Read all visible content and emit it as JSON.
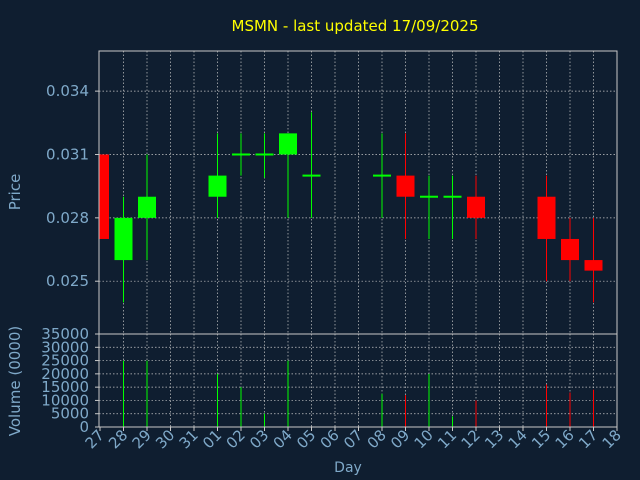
{
  "colors": {
    "background": "#0f1e30",
    "title": "#ffff00",
    "axis_text": "#7fa9c9",
    "grid": "#c8c8c8",
    "frame": "#c8c8c8",
    "up": "#00ff00",
    "down": "#ff0000"
  },
  "chart_data": [
    {
      "type": "candlestick",
      "title": "MSMN - last updated 17/09/2025",
      "ylabel": "Price",
      "grid": true,
      "ylim": [
        0.0225,
        0.0359
      ],
      "yticks": [
        0.025,
        0.028,
        0.031,
        0.034
      ],
      "ytick_labels": [
        "0.025",
        "0.028",
        "0.031",
        "0.034"
      ],
      "x_ticks": [
        "27",
        "28",
        "29",
        "30",
        "31",
        "01",
        "02",
        "03",
        "04",
        "05",
        "06",
        "07",
        "08",
        "09",
        "10",
        "11",
        "12",
        "13",
        "14",
        "15",
        "16",
        "17",
        "18"
      ],
      "candles": [
        {
          "day": "27",
          "open": 0.031,
          "high": 0.031,
          "low": 0.027,
          "close": 0.027
        },
        {
          "day": "28",
          "open": 0.026,
          "high": 0.029,
          "low": 0.024,
          "close": 0.028
        },
        {
          "day": "29",
          "open": 0.028,
          "high": 0.031,
          "low": 0.026,
          "close": 0.029
        },
        {
          "day": "01",
          "open": 0.029,
          "high": 0.032,
          "low": 0.028,
          "close": 0.03
        },
        {
          "day": "02",
          "open": 0.031,
          "high": 0.032,
          "low": 0.03,
          "close": 0.031
        },
        {
          "day": "03",
          "open": 0.031,
          "high": 0.032,
          "low": 0.0299,
          "close": 0.031
        },
        {
          "day": "04",
          "open": 0.031,
          "high": 0.032,
          "low": 0.028,
          "close": 0.032
        },
        {
          "day": "05",
          "open": 0.03,
          "high": 0.033,
          "low": 0.028,
          "close": 0.03
        },
        {
          "day": "08",
          "open": 0.03,
          "high": 0.032,
          "low": 0.028,
          "close": 0.03
        },
        {
          "day": "09",
          "open": 0.03,
          "high": 0.032,
          "low": 0.027,
          "close": 0.029
        },
        {
          "day": "10",
          "open": 0.029,
          "high": 0.03,
          "low": 0.027,
          "close": 0.029
        },
        {
          "day": "11",
          "open": 0.029,
          "high": 0.03,
          "low": 0.027,
          "close": 0.029
        },
        {
          "day": "12",
          "open": 0.029,
          "high": 0.03,
          "low": 0.027,
          "close": 0.028
        },
        {
          "day": "15",
          "open": 0.029,
          "high": 0.03,
          "low": 0.025,
          "close": 0.027
        },
        {
          "day": "16",
          "open": 0.027,
          "high": 0.028,
          "low": 0.025,
          "close": 0.026
        },
        {
          "day": "17",
          "open": 0.026,
          "high": 0.028,
          "low": 0.024,
          "close": 0.0255
        }
      ]
    },
    {
      "type": "bar",
      "ylabel": "Volume (0000)",
      "xlabel": "Day",
      "grid": true,
      "ylim": [
        0,
        35000
      ],
      "yticks": [
        0,
        5000,
        10000,
        15000,
        20000,
        25000,
        30000,
        35000
      ],
      "ytick_labels": [
        "0",
        "5000",
        "10000",
        "15000",
        "20000",
        "25000",
        "30000",
        "35000"
      ],
      "bars": [
        {
          "day": "28",
          "value": 25000,
          "direction": "up"
        },
        {
          "day": "29",
          "value": 25000,
          "direction": "up"
        },
        {
          "day": "01",
          "value": 20000,
          "direction": "up"
        },
        {
          "day": "02",
          "value": 15000,
          "direction": "up"
        },
        {
          "day": "03",
          "value": 5000,
          "direction": "up"
        },
        {
          "day": "04",
          "value": 25000,
          "direction": "up"
        },
        {
          "day": "08",
          "value": 12500,
          "direction": "up"
        },
        {
          "day": "09",
          "value": 12000,
          "direction": "down"
        },
        {
          "day": "10",
          "value": 20000,
          "direction": "up"
        },
        {
          "day": "11",
          "value": 4000,
          "direction": "up"
        },
        {
          "day": "12",
          "value": 10000,
          "direction": "down"
        },
        {
          "day": "15",
          "value": 16000,
          "direction": "down"
        },
        {
          "day": "16",
          "value": 13000,
          "direction": "down"
        },
        {
          "day": "17",
          "value": 14000,
          "direction": "down"
        }
      ]
    }
  ]
}
